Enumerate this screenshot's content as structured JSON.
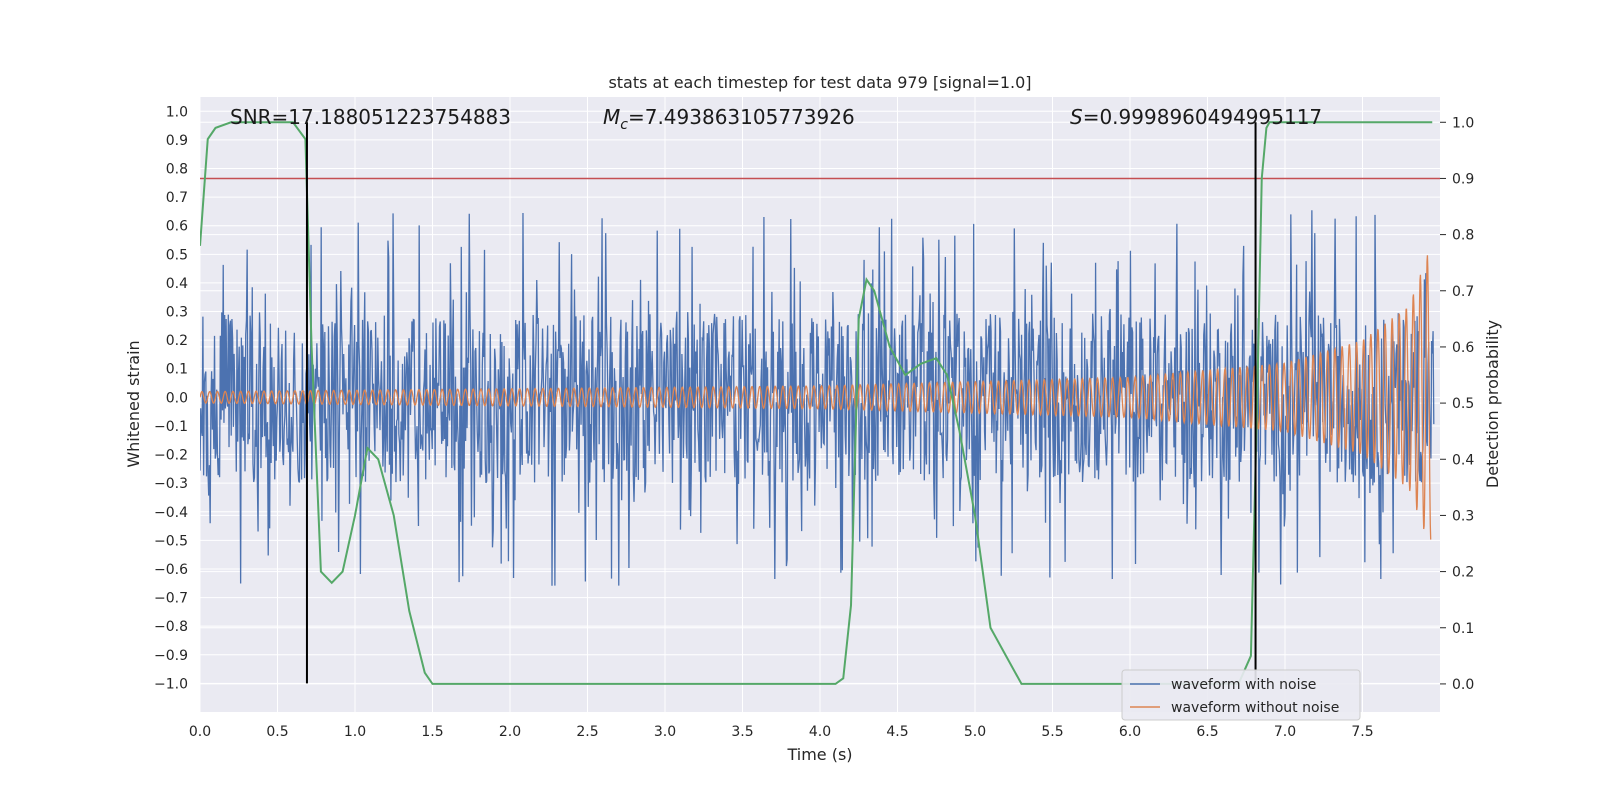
{
  "chart_data": {
    "type": "line",
    "title": "stats at each timestep for test data 979 [signal=1.0]",
    "xlabel": "Time (s)",
    "ylabel": "Whitened strain",
    "y2label": "Detection probability",
    "xlim": [
      0.0,
      8.0
    ],
    "ylim": [
      -1.1,
      1.05
    ],
    "y2lim": [
      -0.05,
      1.045
    ],
    "x_ticks": [
      "0.0",
      "0.5",
      "1.0",
      "1.5",
      "2.0",
      "2.5",
      "3.0",
      "3.5",
      "4.0",
      "4.5",
      "5.0",
      "5.5",
      "6.0",
      "6.5",
      "7.0",
      "7.5"
    ],
    "y_ticks": [
      "1.0",
      "0.9",
      "0.8",
      "0.7",
      "0.6",
      "0.5",
      "0.4",
      "0.3",
      "0.2",
      "0.1",
      "0.0",
      "−0.1",
      "−0.2",
      "−0.3",
      "−0.4",
      "−0.5",
      "−0.6",
      "−0.7",
      "−0.8",
      "−0.9",
      "−1.0"
    ],
    "y2_ticks": [
      "1.0",
      "0.9",
      "0.8",
      "0.7",
      "0.6",
      "0.5",
      "0.4",
      "0.3",
      "0.2",
      "0.1",
      "0.0"
    ],
    "threshold_line": {
      "value": 0.9,
      "axis": "y2",
      "color": "#c44e52"
    },
    "vertical_markers": [
      0.69,
      6.81
    ],
    "annotations": {
      "snr": "SNR=17.188051223754883",
      "mc_symbol": "M",
      "mc_subscript": "c",
      "mc_value": "=7.493863105773926",
      "s_symbol": "S",
      "s_value": "=0.9998960494995117"
    },
    "series": [
      {
        "name": "waveform with noise",
        "color": "#4c72b0",
        "approx_amplitude": 0.45
      },
      {
        "name": "waveform without noise",
        "color": "#dd8452",
        "envelope": {
          "t": [
            0.0,
            4.0,
            6.0,
            7.0,
            7.5,
            7.8,
            7.92
          ],
          "amp": [
            0.02,
            0.04,
            0.07,
            0.12,
            0.2,
            0.32,
            0.5
          ]
        }
      },
      {
        "name": "Detection probability",
        "color": "#55a868",
        "axis": "y2",
        "x": [
          0.0,
          0.05,
          0.1,
          0.2,
          0.6,
          0.68,
          0.72,
          0.78,
          0.85,
          0.92,
          1.0,
          1.08,
          1.15,
          1.25,
          1.35,
          1.45,
          1.5,
          1.6,
          4.0,
          4.1,
          4.15,
          4.2,
          4.25,
          4.3,
          4.35,
          4.45,
          4.55,
          4.65,
          4.75,
          4.82,
          4.9,
          5.0,
          5.1,
          5.2,
          5.3,
          5.5,
          6.7,
          6.78,
          6.82,
          6.85,
          6.88,
          6.9,
          7.0,
          7.95
        ],
        "y": [
          0.78,
          0.97,
          0.99,
          1.0,
          1.0,
          0.97,
          0.6,
          0.2,
          0.18,
          0.2,
          0.3,
          0.42,
          0.4,
          0.3,
          0.13,
          0.02,
          0.0,
          0.0,
          0.0,
          0.0,
          0.01,
          0.14,
          0.65,
          0.72,
          0.7,
          0.6,
          0.55,
          0.57,
          0.58,
          0.55,
          0.45,
          0.3,
          0.1,
          0.05,
          0.0,
          0.0,
          0.0,
          0.05,
          0.5,
          0.9,
          0.99,
          1.0,
          1.0,
          1.0
        ]
      }
    ],
    "grid": true,
    "legend_position": "lower right"
  },
  "colors": {
    "plot_background": "#eaeaf2",
    "grid": "#ffffff",
    "marker_line": "#000000"
  }
}
